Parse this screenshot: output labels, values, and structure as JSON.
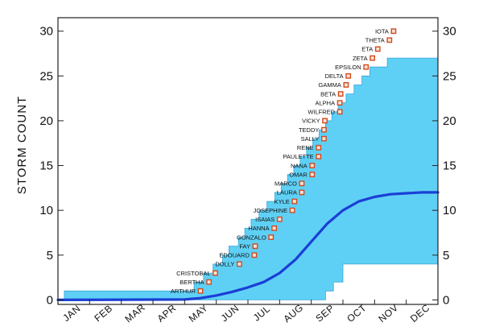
{
  "chart_data": {
    "type": "area",
    "title": "",
    "xlabel": "",
    "ylabel": "STORM COUNT",
    "ylim": [
      -0.5,
      31.5
    ],
    "yticks": [
      0,
      5,
      10,
      15,
      20,
      25,
      30
    ],
    "xlim": [
      0,
      12
    ],
    "months": [
      "JAN",
      "FEB",
      "MAR",
      "APR",
      "MAY",
      "JUN",
      "JUL",
      "AUG",
      "SEP",
      "OCT",
      "NOV",
      "DEC"
    ],
    "colors": {
      "band": "#5fd0f5",
      "band_edge": "#3aa6d8",
      "mean_line": "#1a3fd6",
      "storm_marker_fill": "#fbe3d6",
      "storm_marker_stroke": "#d24a1e",
      "axis": "#222222"
    },
    "series": [
      {
        "kind": "range_upper",
        "x": [
          0.2,
          3.8,
          4.3,
          4.6,
          4.9,
          5.2,
          5.4,
          5.7,
          5.9,
          6.1,
          6.35,
          6.6,
          6.85,
          7.05,
          7.25,
          7.45,
          7.65,
          7.85,
          8.05,
          8.25,
          8.45,
          8.65,
          8.85,
          9.1,
          9.35,
          9.6,
          9.85,
          10.4,
          12.0
        ],
        "values": [
          1,
          1,
          2,
          3,
          4,
          5,
          6,
          7,
          8,
          9,
          10,
          11,
          12,
          13,
          14,
          15,
          16,
          17,
          18,
          19,
          20,
          21,
          22,
          23,
          24,
          25,
          26,
          27,
          27
        ]
      },
      {
        "kind": "range_lower",
        "x": [
          0.2,
          7.8,
          8.1,
          8.45,
          8.7,
          9.0,
          12.0
        ],
        "values": [
          0,
          0,
          0,
          1,
          2,
          4,
          4
        ]
      },
      {
        "kind": "mean",
        "x": [
          0,
          4.0,
          4.5,
          5.0,
          5.5,
          6.0,
          6.5,
          7.0,
          7.5,
          8.0,
          8.5,
          9.0,
          9.5,
          10.0,
          10.5,
          11.0,
          11.5,
          12.0
        ],
        "values": [
          0,
          0.05,
          0.2,
          0.5,
          0.9,
          1.4,
          2.0,
          3.0,
          4.5,
          6.5,
          8.5,
          10.0,
          11.0,
          11.5,
          11.8,
          11.9,
          12.0,
          12.0
        ]
      }
    ],
    "storms": [
      {
        "name": "ARTHUR",
        "x": 4.5,
        "count": 1
      },
      {
        "name": "BERTHA",
        "x": 4.77,
        "count": 2
      },
      {
        "name": "CRISTOBAL",
        "x": 4.97,
        "count": 3
      },
      {
        "name": "DOLLY",
        "x": 5.73,
        "count": 4
      },
      {
        "name": "EDOUARD",
        "x": 6.2,
        "count": 5
      },
      {
        "name": "FAY",
        "x": 6.23,
        "count": 6
      },
      {
        "name": "GONZALO",
        "x": 6.73,
        "count": 7
      },
      {
        "name": "HANNA",
        "x": 6.83,
        "count": 8
      },
      {
        "name": "ISAIAS",
        "x": 7.0,
        "count": 9
      },
      {
        "name": "JOSEPHINE",
        "x": 7.4,
        "count": 10
      },
      {
        "name": "KYLE",
        "x": 7.47,
        "count": 11
      },
      {
        "name": "LAURA",
        "x": 7.7,
        "count": 12
      },
      {
        "name": "MARCO",
        "x": 7.7,
        "count": 13
      },
      {
        "name": "OMAR",
        "x": 8.03,
        "count": 14
      },
      {
        "name": "NANA",
        "x": 8.03,
        "count": 15
      },
      {
        "name": "PAULETTE",
        "x": 8.23,
        "count": 16
      },
      {
        "name": "RENE",
        "x": 8.23,
        "count": 17
      },
      {
        "name": "SALLY",
        "x": 8.4,
        "count": 18
      },
      {
        "name": "TEDDY",
        "x": 8.4,
        "count": 19
      },
      {
        "name": "VICKY",
        "x": 8.43,
        "count": 20
      },
      {
        "name": "WILFRED",
        "x": 8.9,
        "count": 21
      },
      {
        "name": "ALPHA",
        "x": 8.9,
        "count": 22
      },
      {
        "name": "BETA",
        "x": 8.93,
        "count": 23
      },
      {
        "name": "GAMMA",
        "x": 9.1,
        "count": 24
      },
      {
        "name": "DELTA",
        "x": 9.17,
        "count": 25
      },
      {
        "name": "EPSILON",
        "x": 9.73,
        "count": 26
      },
      {
        "name": "ZETA",
        "x": 9.93,
        "count": 27
      },
      {
        "name": "ETA",
        "x": 10.1,
        "count": 28
      },
      {
        "name": "THETA",
        "x": 10.47,
        "count": 29
      },
      {
        "name": "IOTA",
        "x": 10.6,
        "count": 30
      }
    ]
  }
}
